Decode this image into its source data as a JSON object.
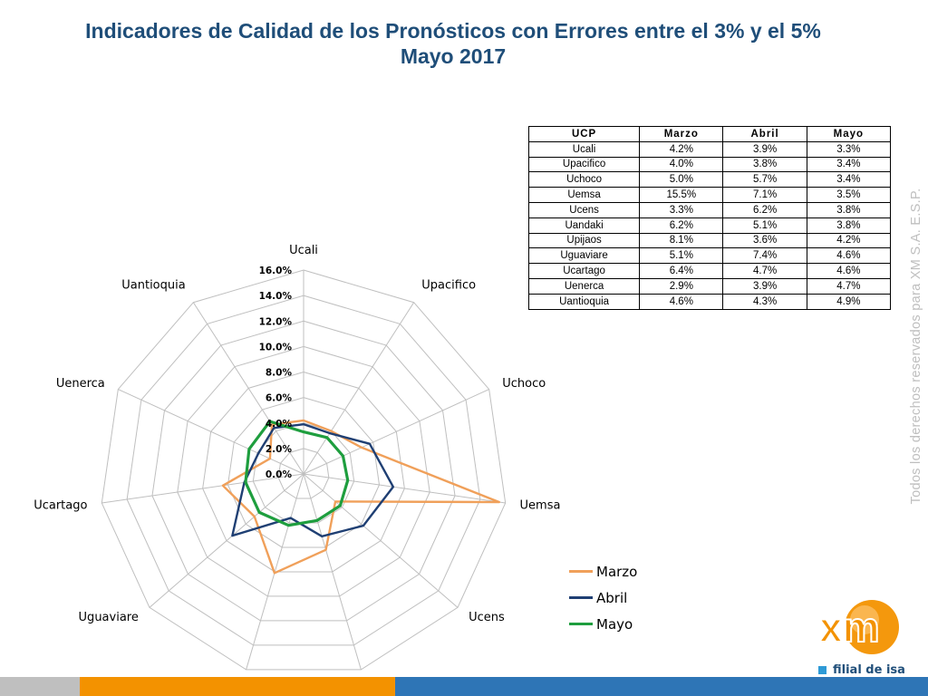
{
  "title": {
    "line1": "Indicadores de Calidad de los Pronósticos con Errores entre el 3% y el 5%",
    "line2": "Mayo 2017"
  },
  "table": {
    "headers": [
      "UCP",
      "Marzo",
      "Abril",
      "Mayo"
    ],
    "rows": [
      [
        "Ucali",
        "4.2%",
        "3.9%",
        "3.3%"
      ],
      [
        "Upacifico",
        "4.0%",
        "3.8%",
        "3.4%"
      ],
      [
        "Uchoco",
        "5.0%",
        "5.7%",
        "3.4%"
      ],
      [
        "Uemsa",
        "15.5%",
        "7.1%",
        "3.5%"
      ],
      [
        "Ucens",
        "3.3%",
        "6.2%",
        "3.8%"
      ],
      [
        "Uandaki",
        "6.2%",
        "5.1%",
        "3.8%"
      ],
      [
        "Upijaos",
        "8.1%",
        "3.6%",
        "4.2%"
      ],
      [
        "Uguaviare",
        "5.1%",
        "7.4%",
        "4.6%"
      ],
      [
        "Ucartago",
        "6.4%",
        "4.7%",
        "4.6%"
      ],
      [
        "Uenerca",
        "2.9%",
        "3.9%",
        "4.7%"
      ],
      [
        "Uantioquia",
        "4.6%",
        "4.3%",
        "4.9%"
      ]
    ]
  },
  "chart_data": {
    "type": "radar",
    "categories": [
      "Ucali",
      "Upacifico",
      "Uchoco",
      "Uemsa",
      "Ucens",
      "Uandaki",
      "Upijaos",
      "Uguaviare",
      "Ucartago",
      "Uenerca",
      "Uantioquia"
    ],
    "series": [
      {
        "name": "Marzo",
        "color": "#f0a05a",
        "values": [
          4.2,
          4.0,
          5.0,
          15.5,
          3.3,
          6.2,
          8.1,
          5.1,
          6.4,
          2.9,
          4.6
        ]
      },
      {
        "name": "Abril",
        "color": "#1f3f73",
        "values": [
          3.9,
          3.8,
          5.7,
          7.1,
          6.2,
          5.1,
          3.6,
          7.4,
          4.7,
          3.9,
          4.3
        ]
      },
      {
        "name": "Mayo",
        "color": "#1e9e3e",
        "values": [
          3.3,
          3.4,
          3.4,
          3.5,
          3.8,
          3.8,
          4.2,
          4.6,
          4.6,
          4.7,
          4.9
        ]
      }
    ],
    "ticks": [
      "0.0%",
      "2.0%",
      "4.0%",
      "6.0%",
      "8.0%",
      "10.0%",
      "12.0%",
      "14.0%",
      "16.0%"
    ],
    "rmax": 16,
    "step": 2,
    "legend_position": "bottom-right"
  },
  "side_note": "Todos los derechos reservados para XM S.A. E.S.P.",
  "logo": {
    "text": "filial de isa",
    "brand_orange": "#f39200",
    "brand_blue": "#1f4e79"
  },
  "footer_colors": [
    "#bfbfbf",
    "#f39200",
    "#2e75b6"
  ]
}
